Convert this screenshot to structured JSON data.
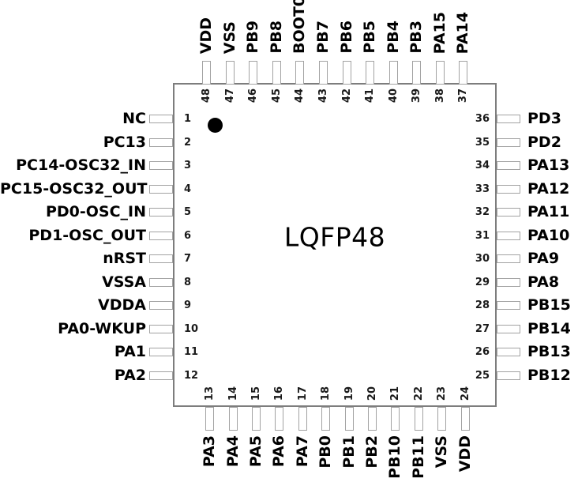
{
  "package": {
    "name": "LQFP48",
    "pin_count": 48
  },
  "pin1_marker": "filled-dot-top-left",
  "colors": {
    "background": "#ffffff",
    "body_outline": "#7d7d7d",
    "stub_outline": "#a2a2a2",
    "text": "#000000"
  },
  "sides": {
    "left": {
      "order": "top-to-bottom",
      "pins": [
        {
          "num": "1",
          "label": "NC"
        },
        {
          "num": "2",
          "label": "PC13"
        },
        {
          "num": "3",
          "label": "PC14-OSC32_IN"
        },
        {
          "num": "4",
          "label": "PC15-OSC32_OUT"
        },
        {
          "num": "5",
          "label": "PD0-OSC_IN"
        },
        {
          "num": "6",
          "label": "PD1-OSC_OUT"
        },
        {
          "num": "7",
          "label": "nRST"
        },
        {
          "num": "8",
          "label": "VSSA"
        },
        {
          "num": "9",
          "label": "VDDA"
        },
        {
          "num": "10",
          "label": "PA0-WKUP"
        },
        {
          "num": "11",
          "label": "PA1"
        },
        {
          "num": "12",
          "label": "PA2"
        }
      ]
    },
    "top": {
      "order": "left-to-right",
      "pins": [
        {
          "num": "48",
          "label": "VDD"
        },
        {
          "num": "47",
          "label": "VSS"
        },
        {
          "num": "46",
          "label": "PB9"
        },
        {
          "num": "45",
          "label": "PB8"
        },
        {
          "num": "44",
          "label": "BOOT0"
        },
        {
          "num": "43",
          "label": "PB7"
        },
        {
          "num": "42",
          "label": "PB6"
        },
        {
          "num": "41",
          "label": "PB5"
        },
        {
          "num": "40",
          "label": "PB4"
        },
        {
          "num": "39",
          "label": "PB3"
        },
        {
          "num": "38",
          "label": "PA15"
        },
        {
          "num": "37",
          "label": "PA14"
        }
      ]
    },
    "right": {
      "order": "top-to-bottom",
      "pins": [
        {
          "num": "36",
          "label": "PD3"
        },
        {
          "num": "35",
          "label": "PD2"
        },
        {
          "num": "34",
          "label": "PA13"
        },
        {
          "num": "33",
          "label": "PA12"
        },
        {
          "num": "32",
          "label": "PA11"
        },
        {
          "num": "31",
          "label": "PA10"
        },
        {
          "num": "30",
          "label": "PA9"
        },
        {
          "num": "29",
          "label": "PA8"
        },
        {
          "num": "28",
          "label": "PB15"
        },
        {
          "num": "27",
          "label": "PB14"
        },
        {
          "num": "26",
          "label": "PB13"
        },
        {
          "num": "25",
          "label": "PB12"
        }
      ]
    },
    "bottom": {
      "order": "left-to-right",
      "pins": [
        {
          "num": "13",
          "label": "PA3"
        },
        {
          "num": "14",
          "label": "PA4"
        },
        {
          "num": "15",
          "label": "PA5"
        },
        {
          "num": "16",
          "label": "PA6"
        },
        {
          "num": "17",
          "label": "PA7"
        },
        {
          "num": "18",
          "label": "PB0"
        },
        {
          "num": "19",
          "label": "PB1"
        },
        {
          "num": "20",
          "label": "PB2"
        },
        {
          "num": "21",
          "label": "PB10"
        },
        {
          "num": "22",
          "label": "PB11"
        },
        {
          "num": "23",
          "label": "VSS"
        },
        {
          "num": "24",
          "label": "VDD"
        }
      ]
    }
  }
}
